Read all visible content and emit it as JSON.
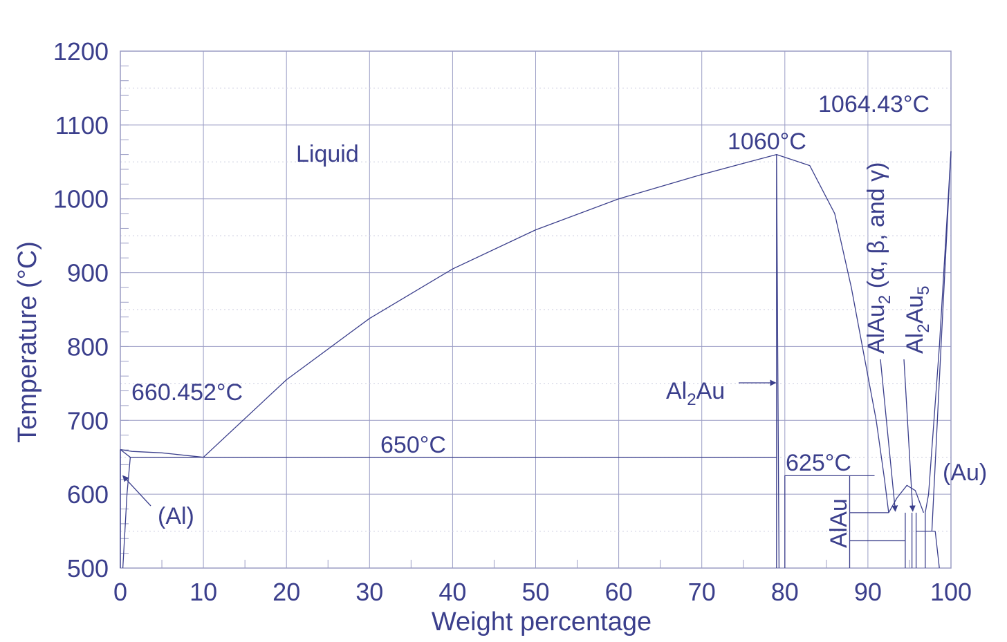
{
  "chart_data": {
    "type": "line",
    "title": "",
    "xlabel": "Weight percentage",
    "ylabel": "Temperature (°C)",
    "xlim": [
      0,
      100
    ],
    "ylim": [
      500,
      1200
    ],
    "x_ticks": [
      "0",
      "10",
      "20",
      "30",
      "40",
      "50",
      "60",
      "70",
      "80",
      "90",
      "100"
    ],
    "y_ticks": [
      "500",
      "600",
      "700",
      "800",
      "900",
      "1000",
      "1100",
      "1200"
    ],
    "grid": true,
    "colors": {
      "ink": "#3b3f8c",
      "grid": "#9a9cc4",
      "dotted": "#c9cade"
    },
    "labels": {
      "liquid": "Liquid",
      "al_melting": "660.452°C",
      "eutectic_650": "650°C",
      "al_phase": "(Al)",
      "al2au_max": "1060°C",
      "au_melting": "1064.43°C",
      "eutectic_625": "625°C",
      "au_phase": "(Au)",
      "alau": "AlAu",
      "al2au": {
        "base": "Al",
        "sub": "2",
        "tail": "Au"
      },
      "alau2": {
        "base": "AlAu",
        "sub": "2",
        "tail": " (α, β, and γ)"
      },
      "al2au5": {
        "base": "Al",
        "sub1": "2",
        "mid": "Au",
        "sub2": "5"
      }
    },
    "series": [
      {
        "values": [
          [
            0,
            660.452
          ],
          [
            1.4,
            658
          ],
          [
            5,
            656
          ],
          [
            10,
            650
          ]
        ]
      },
      {
        "values": [
          [
            10,
            650
          ],
          [
            20,
            755
          ],
          [
            30,
            838
          ],
          [
            40,
            905
          ],
          [
            50,
            958
          ],
          [
            60,
            1000
          ],
          [
            70,
            1033
          ],
          [
            75,
            1048
          ],
          [
            79,
            1060
          ]
        ]
      },
      {
        "values": [
          [
            79,
            1060
          ],
          [
            83,
            1045
          ],
          [
            86,
            980
          ],
          [
            88,
            880
          ],
          [
            90,
            760
          ],
          [
            91,
            700
          ],
          [
            92,
            620
          ],
          [
            92.5,
            575
          ]
        ]
      },
      {
        "values": [
          [
            92.5,
            575
          ],
          [
            93.5,
            595
          ],
          [
            94.7,
            612
          ],
          [
            95.7,
            605
          ],
          [
            96.7,
            575
          ]
        ]
      },
      {
        "values": [
          [
            97.7,
            550
          ],
          [
            98.8,
            800
          ],
          [
            100,
            1064.43
          ]
        ]
      },
      {
        "values": [
          [
            100,
            1064.43
          ],
          [
            98.6,
            800
          ],
          [
            97.3,
            600
          ],
          [
            96.9,
            575
          ]
        ]
      },
      {
        "values": [
          [
            0,
            660.452
          ],
          [
            1.2,
            650
          ],
          [
            0.8,
            600
          ],
          [
            0.3,
            500
          ]
        ]
      },
      {
        "values": [
          [
            0,
            500
          ],
          [
            0,
            660.452
          ]
        ]
      },
      {
        "values": [
          [
            1.2,
            650
          ],
          [
            79,
            650
          ]
        ]
      },
      {
        "values": [
          [
            79,
            500
          ],
          [
            79,
            1060
          ],
          [
            79.3,
            500
          ]
        ]
      },
      {
        "values": [
          [
            80,
            500
          ],
          [
            80,
            625
          ],
          [
            90.8,
            625
          ]
        ]
      },
      {
        "values": [
          [
            87.8,
            500
          ],
          [
            87.8,
            625
          ]
        ]
      },
      {
        "values": [
          [
            87.8,
            575
          ],
          [
            92.5,
            575
          ]
        ]
      },
      {
        "values": [
          [
            87.8,
            537
          ],
          [
            94.5,
            537
          ]
        ]
      },
      {
        "values": [
          [
            94.5,
            500
          ],
          [
            94.5,
            575
          ]
        ]
      },
      {
        "values": [
          [
            95.3,
            500
          ],
          [
            95.3,
            575
          ]
        ]
      },
      {
        "values": [
          [
            95.8,
            500
          ],
          [
            95.8,
            575
          ]
        ]
      },
      {
        "values": [
          [
            96.9,
            500
          ],
          [
            96.9,
            575
          ]
        ]
      },
      {
        "values": [
          [
            95.8,
            550
          ],
          [
            98.1,
            550
          ]
        ]
      },
      {
        "values": [
          [
            98.1,
            550
          ],
          [
            98.6,
            500
          ]
        ]
      }
    ]
  }
}
